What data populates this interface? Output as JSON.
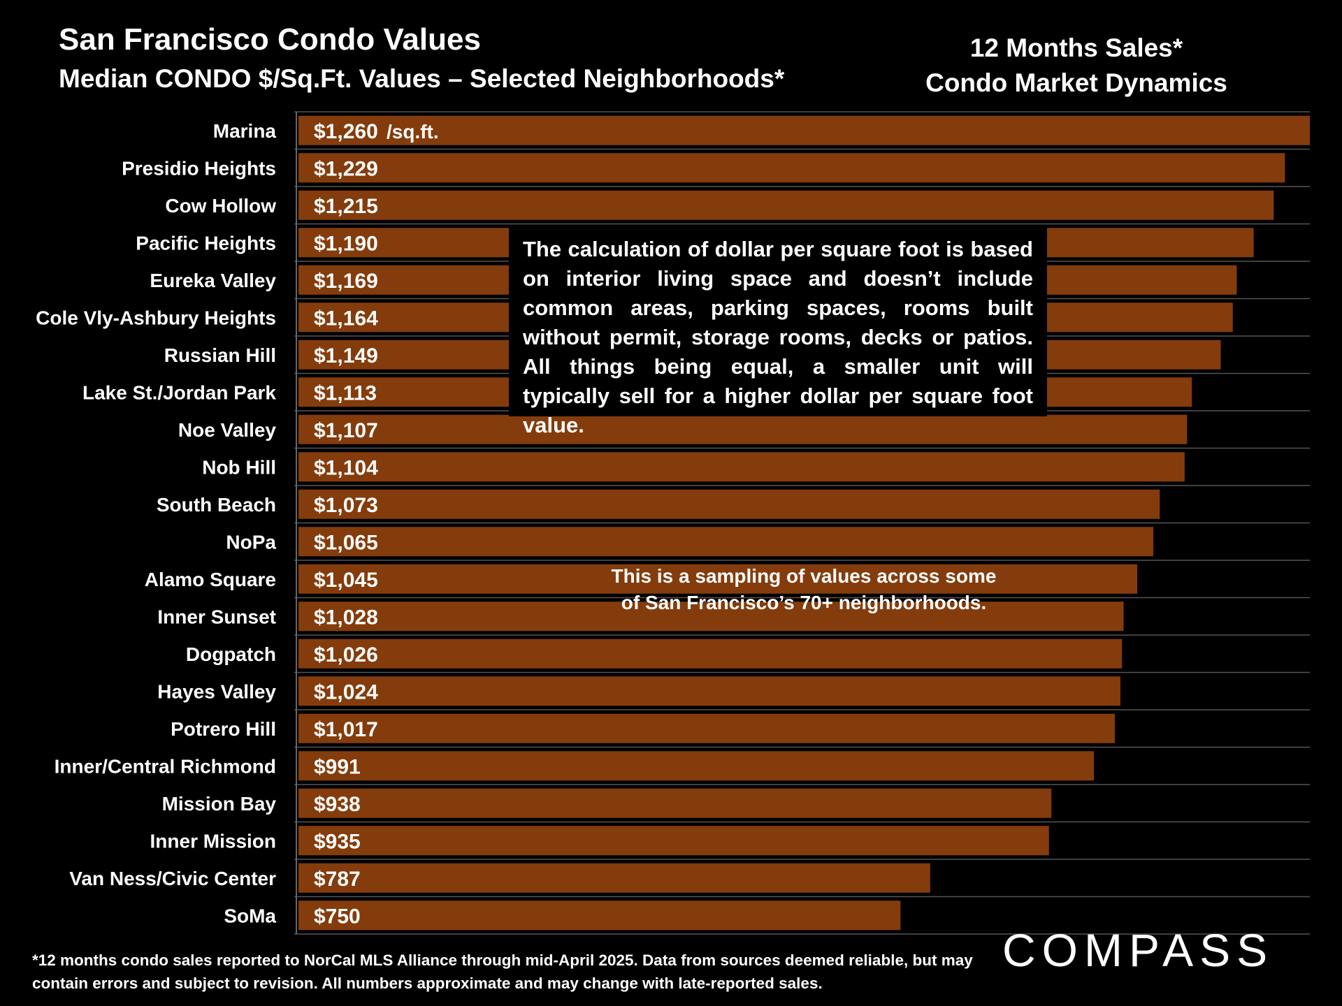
{
  "header": {
    "title": "San Francisco Condo Values",
    "subtitle": "Median CONDO $/Sq.Ft. Values – Selected Neighborhoods*"
  },
  "side_title": {
    "line1": "12 Months Sales*",
    "line2": "Condo Market Dynamics"
  },
  "notes": {
    "calculation": "The calculation of dollar per square foot is based on interior living space and doesn’t include common areas, parking spaces, rooms built without permit, storage rooms, decks or patios. All things being equal, a smaller unit will typically sell for a higher dollar per square foot value.",
    "sampling_line1": "This is a sampling of values across some",
    "sampling_line2": "of San Francisco’s 70+ neighborhoods."
  },
  "footnote": "*12 months condo sales reported to NorCal MLS Alliance through mid-April 2025. Data from sources deemed reliable, but may contain errors and subject to revision. All numbers approximate and may change with late-reported sales.",
  "logo": "COMPASS",
  "chart_data": {
    "type": "bar",
    "orientation": "horizontal",
    "categories": [
      "Marina",
      "Presidio Heights",
      "Cow Hollow",
      "Pacific Heights",
      "Eureka Valley",
      "Cole Vly-Ashbury Heights",
      "Russian Hill",
      "Lake St./Jordan Park",
      "Noe Valley",
      "Nob Hill",
      "South Beach",
      "NoPa",
      "Alamo Square",
      "Inner Sunset",
      "Dogpatch",
      "Hayes Valley",
      "Potrero Hill",
      "Inner/Central Richmond",
      "Mission Bay",
      "Inner Mission",
      "Van Ness/Civic Center",
      "SoMa"
    ],
    "values": [
      1260,
      1229,
      1215,
      1190,
      1169,
      1164,
      1149,
      1113,
      1107,
      1104,
      1073,
      1065,
      1045,
      1028,
      1026,
      1024,
      1017,
      991,
      938,
      935,
      787,
      750
    ],
    "value_labels": [
      "$1,260",
      "$1,229",
      "$1,215",
      "$1,190",
      "$1,169",
      "$1,164",
      "$1,149",
      "$1,113",
      "$1,107",
      "$1,104",
      "$1,073",
      "$1,065",
      "$1,045",
      "$1,028",
      "$1,026",
      "$1,024",
      "$1,017",
      "$991",
      "$938",
      "$935",
      "$787",
      "$750"
    ],
    "first_label_unit": "/sq.ft.",
    "xlim": [
      0,
      1260
    ],
    "bar_color": "#843C0C",
    "grid": "horizontal separators"
  }
}
